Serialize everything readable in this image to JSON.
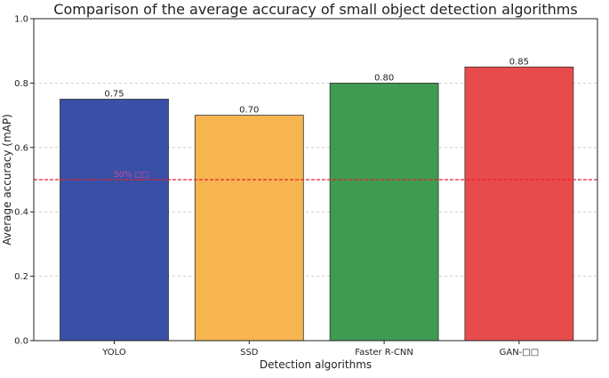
{
  "chart_data": {
    "type": "bar",
    "title": "Comparison of the average accuracy of small object detection algorithms",
    "xlabel": "Detection algorithms",
    "ylabel": "Average accuracy (mAP)",
    "categories": [
      "YOLO",
      "SSD",
      "Faster R-CNN",
      "GAN-□□"
    ],
    "values": [
      0.75,
      0.7,
      0.8,
      0.85
    ],
    "data_labels": [
      "0.75",
      "0.70",
      "0.80",
      "0.85"
    ],
    "colors": [
      "#3a4fa6",
      "#f6b54f",
      "#3f9a52",
      "#e84b4c"
    ],
    "ylim": [
      0,
      1.0
    ],
    "yticks": [
      0.0,
      0.2,
      0.4,
      0.6,
      0.8,
      1.0
    ],
    "ytick_labels": [
      "0.0",
      "0.2",
      "0.4",
      "0.6",
      "0.8",
      "1.0"
    ],
    "grid": "horizontal-dashed",
    "reference_line": {
      "value": 0.5,
      "color": "#e8202a",
      "style": "dashed",
      "label": "50% □□"
    }
  }
}
